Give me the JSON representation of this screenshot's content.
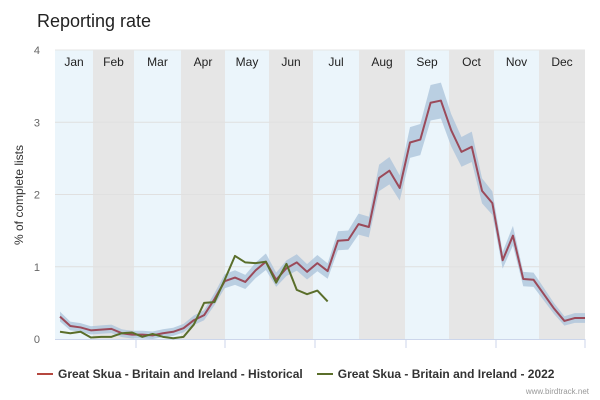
{
  "chart_data": {
    "type": "line",
    "title": "Reporting rate",
    "ylabel": "% of complete lists",
    "xlabel": "",
    "ylim": [
      0,
      4
    ],
    "yticks": [
      "0",
      "1",
      "2",
      "3",
      "4"
    ],
    "months": [
      "Jan",
      "Feb",
      "Mar",
      "Apr",
      "May",
      "Jun",
      "Jul",
      "Aug",
      "Sep",
      "Oct",
      "Nov",
      "Dec"
    ],
    "x_unit": "week",
    "grid": true,
    "legend_position": "bottom",
    "series": [
      {
        "name": "Great Skua - Britain and Ireland - Historical",
        "color": "#9b4a5a",
        "legend_color": "#b5473f",
        "band_color": "#a9c2da",
        "values": [
          0.31,
          0.18,
          0.16,
          0.12,
          0.13,
          0.14,
          0.08,
          0.06,
          0.06,
          0.05,
          0.08,
          0.1,
          0.15,
          0.26,
          0.33,
          0.55,
          0.8,
          0.85,
          0.79,
          0.95,
          1.07,
          0.82,
          0.98,
          1.06,
          0.93,
          1.05,
          0.94,
          1.36,
          1.37,
          1.59,
          1.55,
          2.23,
          2.33,
          2.09,
          2.72,
          2.76,
          3.27,
          3.3,
          2.89,
          2.59,
          2.66,
          2.05,
          1.88,
          1.09,
          1.43,
          0.83,
          0.82,
          0.62,
          0.42,
          0.25,
          0.29,
          0.29
        ]
      },
      {
        "name": "Great Skua - Britain and Ireland - 2022",
        "color": "#5a6e2a",
        "values": [
          0.1,
          0.08,
          0.1,
          0.02,
          0.03,
          0.03,
          0.08,
          0.09,
          0.03,
          0.07,
          0.03,
          0.01,
          0.03,
          0.2,
          0.5,
          0.51,
          0.82,
          1.15,
          1.06,
          1.05,
          1.07,
          0.78,
          1.04,
          0.68,
          0.62,
          0.67,
          0.52
        ]
      }
    ]
  },
  "credit": "www.birdtrack.net"
}
